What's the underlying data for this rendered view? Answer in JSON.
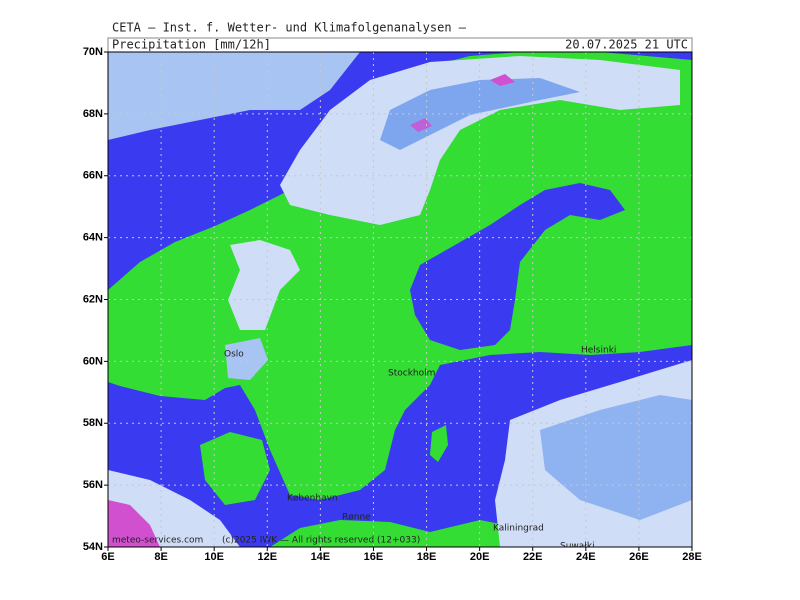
{
  "header": {
    "title": "CETA — Inst. f. Wetter- und Klimafolgenanalysen —",
    "variable": "Precipitation [mm/12h]",
    "valid_time": "20.07.2025 21 UTC"
  },
  "axes": {
    "lat_labels": [
      "54N",
      "56N",
      "58N",
      "60N",
      "62N",
      "64N",
      "66N",
      "68N",
      "70N"
    ],
    "lon_labels": [
      "6E",
      "8E",
      "10E",
      "12E",
      "14E",
      "16E",
      "18E",
      "20E",
      "22E",
      "24E",
      "26E",
      "28E"
    ]
  },
  "cities": [
    "Oslo",
    "Stockholm",
    "Helsinki",
    "København",
    "Rønne",
    "Kaliningrad",
    "Suwałki"
  ],
  "footer": {
    "site": "meteo-services.com",
    "copyright": "(c)2025 IWK — All rights reserved (12+033)"
  }
}
